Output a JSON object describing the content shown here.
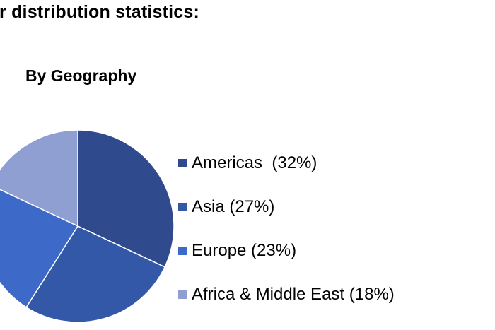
{
  "heading": "r distribution statistics:",
  "chart_data": {
    "type": "pie",
    "title": "By Geography",
    "slices": [
      {
        "label": "Americas",
        "legend_text": "Americas  (32%)",
        "value": 32,
        "color": "#2f4b8e"
      },
      {
        "label": "Asia",
        "legend_text": "Asia (27%)",
        "value": 27,
        "color": "#3358a8"
      },
      {
        "label": "Europe",
        "legend_text": "Europe (23%)",
        "value": 23,
        "color": "#3d6ac9"
      },
      {
        "label": "Africa & Middle East",
        "legend_text": "Africa & Middle East (18%)",
        "value": 18,
        "color": "#8f9fd2"
      }
    ],
    "legend_position": "right"
  }
}
